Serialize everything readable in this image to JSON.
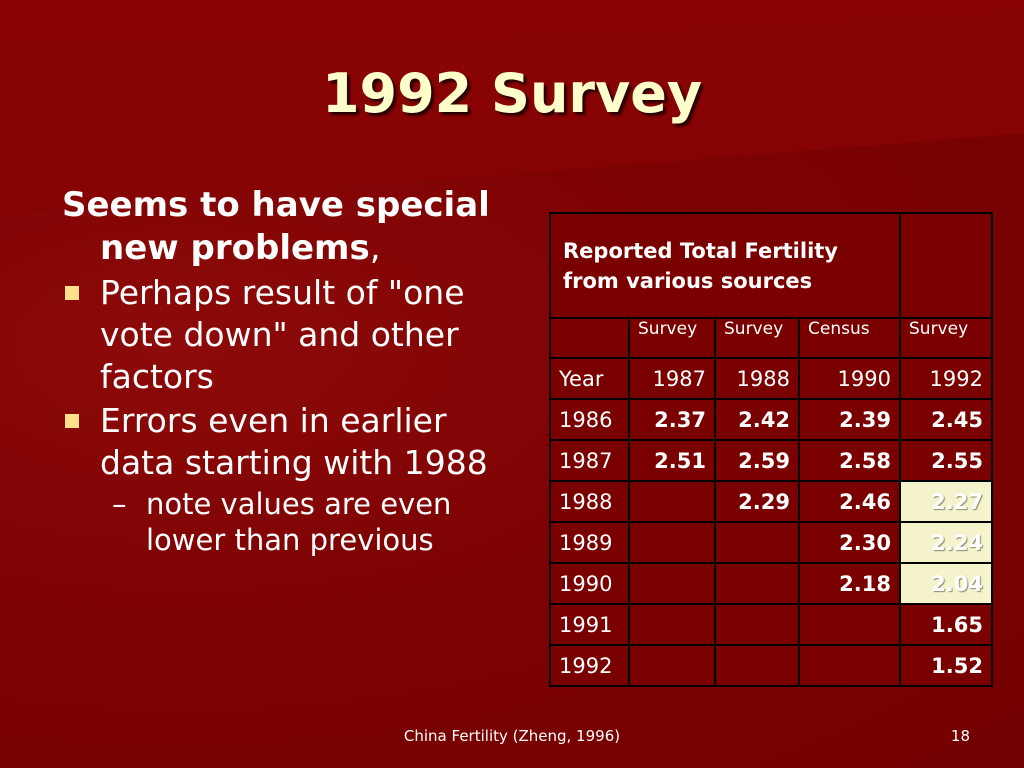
{
  "slide": {
    "title": "1992 Survey",
    "lead": "Seems to have special new problems",
    "lead_suffix": ",",
    "bullets": [
      "Perhaps result of \"one vote down\" and other factors",
      "Errors even in earlier data starting with 1988"
    ],
    "sub_bullet": {
      "marker": "–",
      "text": "note values are even lower than previous"
    }
  },
  "table": {
    "header_title": "Reported Total Fertility from various sources",
    "source_types": [
      "Survey",
      "Survey",
      "Census",
      "Survey"
    ],
    "year_label": "Year",
    "source_years": [
      "1987",
      "1988",
      "1990",
      "1992"
    ],
    "rows": [
      {
        "year": "1986",
        "values": [
          "2.37",
          "2.42",
          "2.39",
          "2.45"
        ]
      },
      {
        "year": "1987",
        "values": [
          "2.51",
          "2.59",
          "2.58",
          "2.55"
        ]
      },
      {
        "year": "1988",
        "values": [
          "",
          "2.29",
          "2.46",
          "2.27"
        ]
      },
      {
        "year": "1989",
        "values": [
          "",
          "",
          "2.30",
          "2.24"
        ]
      },
      {
        "year": "1990",
        "values": [
          "",
          "",
          "2.18",
          "2.04"
        ]
      },
      {
        "year": "1991",
        "values": [
          "",
          "",
          "",
          "1.65"
        ]
      },
      {
        "year": "1992",
        "values": [
          "",
          "",
          "",
          "1.52"
        ]
      }
    ],
    "column_colors": [
      "#007a00",
      "#ffa800",
      "#ff2020",
      "#ffffff"
    ],
    "highlight_color": "#f5f3cc"
  },
  "footer": {
    "citation": "China Fertility  (Zheng, 1996)",
    "page_number": "18"
  }
}
